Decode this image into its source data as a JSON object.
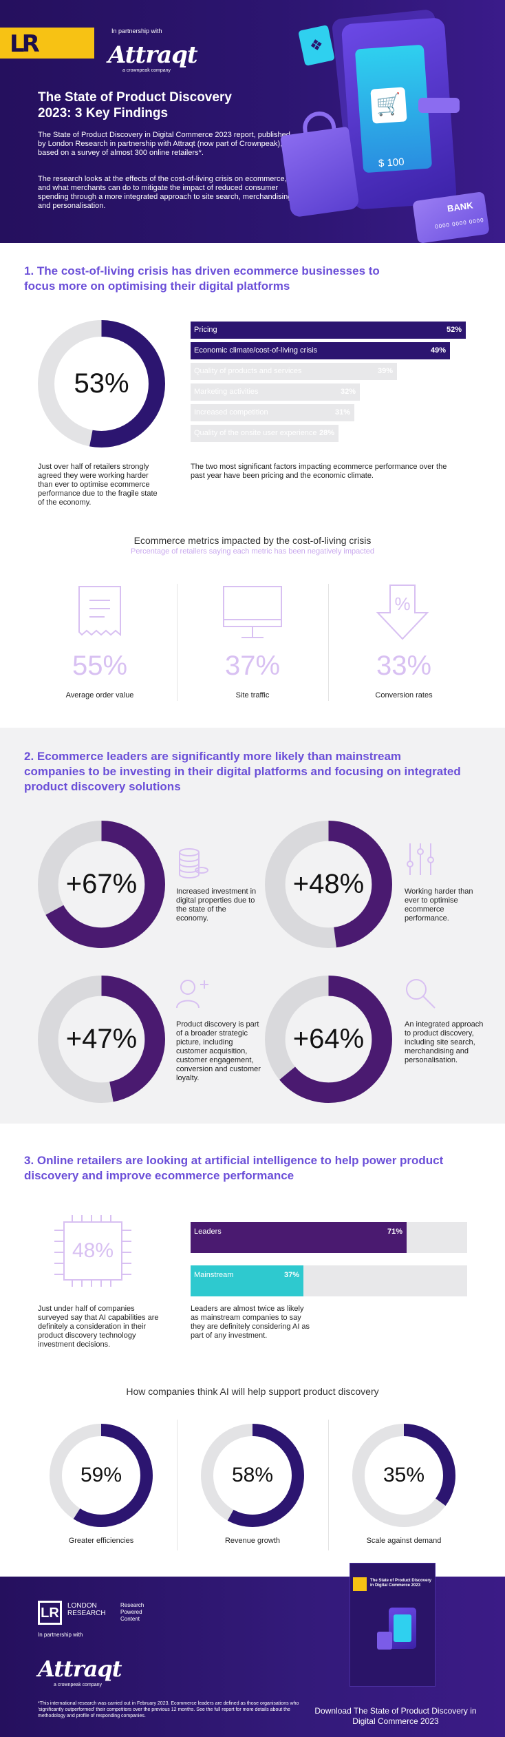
{
  "header": {
    "partnership": "In partnership with",
    "brand": "Attraqt",
    "brand_sub": "a crownpeak company",
    "title": "The State of Product Discovery 2023: 3 Key Findings",
    "para1": "The State of Product Discovery in Digital Commerce 2023 report, published by London Research in partnership with Attraqt (now part of Crownpeak), is based on a survey of almost 300 online retailers*.",
    "para2": "The research looks at the effects of the cost-of-living crisis on ecommerce, and what merchants can do to mitigate the impact of reduced consumer spending through a more integrated approach to site search, merchandising and personalisation.",
    "price_tag": "$ 100",
    "bank_label": "BANK",
    "bank_number": "0000 0000 0000"
  },
  "colors": {
    "dark_purple": "#2c1570",
    "accent_purple": "#6b4fd8",
    "light_lilac": "#d8c0f2",
    "teal": "#2ec9cf",
    "deep_purple": "#4a1a70",
    "grey": "#e3e3e5"
  },
  "section1": {
    "title": "1. The cost-of-living crisis has driven ecommerce businesses to focus more on optimising their digital platforms",
    "donut": {
      "value": 53,
      "label": "53%"
    },
    "donut_caption": "Just over half of retailers strongly agreed they were working harder than ever to optimise ecommerce performance due to the fragile state of the economy.",
    "bars": [
      {
        "label": "Pricing",
        "value": 52,
        "pct": "52%"
      },
      {
        "label": "Economic climate/cost-of-living crisis",
        "value": 49,
        "pct": "49%"
      },
      {
        "label": "Quality of products and services",
        "value": 39,
        "pct": "39%"
      },
      {
        "label": "Marketing activities",
        "value": 32,
        "pct": "32%"
      },
      {
        "label": "Increased competition",
        "value": 31,
        "pct": "31%"
      },
      {
        "label": "Quality of the onsite user experience",
        "value": 28,
        "pct": "28%"
      }
    ],
    "bars_caption": "The two most significant factors impacting ecommerce performance over the past year have been pricing and the economic climate.",
    "metrics_title": "Ecommerce metrics impacted by the cost-of-living crisis",
    "metrics_subtitle": "Percentage of retailers saying each metric has been negatively impacted",
    "metrics": [
      {
        "icon": "receipt-icon",
        "value": "55%",
        "label": "Average order value"
      },
      {
        "icon": "monitor-icon",
        "value": "37%",
        "label": "Site traffic"
      },
      {
        "icon": "percent-arrow-icon",
        "value": "33%",
        "label": "Conversion rates"
      }
    ]
  },
  "section2": {
    "title": "2. Ecommerce leaders are significantly more likely than mainstream companies to be investing in their digital platforms and focusing on integrated product discovery solutions",
    "items": [
      {
        "icon": "coins-icon",
        "value": 67,
        "label": "+67%",
        "caption": "Increased investment in digital properties due to the state of the economy."
      },
      {
        "icon": "sliders-icon",
        "value": 48,
        "label": "+48%",
        "caption": "Working harder than ever to optimise ecommerce performance."
      },
      {
        "icon": "user-plus-icon",
        "value": 47,
        "label": "+47%",
        "caption": "Product discovery is part of a broader strategic picture, including customer acquisition, customer engagement, conversion and customer loyalty."
      },
      {
        "icon": "search-icon",
        "value": 64,
        "label": "+64%",
        "caption": "An integrated approach to product discovery, including site search, merchandising and personalisation."
      }
    ]
  },
  "section3": {
    "title": "3. Online retailers are looking at artificial intelligence to help power product discovery and improve ecommerce performance",
    "chip_value": "48%",
    "chip_caption": "Just under half of companies surveyed say that AI capabilities are definitely a consideration in their product discovery technology investment decisions.",
    "bars": [
      {
        "label": "Leaders",
        "value": 71,
        "pct": "71%"
      },
      {
        "label": "Mainstream",
        "value": 37,
        "pct": "37%"
      }
    ],
    "bars_caption": "Leaders are almost twice as likely as mainstream companies to say they are definitely considering AI as part of any investment.",
    "ai_title": "How companies think AI will help support product discovery",
    "ai_donuts": [
      {
        "value": 59,
        "label": "59%",
        "caption": "Greater efficiencies"
      },
      {
        "value": 58,
        "label": "58%",
        "caption": "Revenue growth"
      },
      {
        "value": 35,
        "label": "35%",
        "caption": "Scale against demand"
      }
    ]
  },
  "footer": {
    "lr_name": "LONDON RESEARCH",
    "lr_tagline": "Research Powered Content",
    "partnership": "In partnership with",
    "brand": "Attraqt",
    "brand_sub": "a crownpeak company",
    "note": "*This international research was carried out in February 2023. Ecommerce leaders are defined as those organisations who 'significantly outperformed' their competitors over the previous 12 months. See the full report for more details about the methodology and profile of responding companies.",
    "cover_title": "The State of Product Discovery in Digital Commerce 2023",
    "download": "Download The State of Product Discovery in Digital Commerce 2023"
  }
}
